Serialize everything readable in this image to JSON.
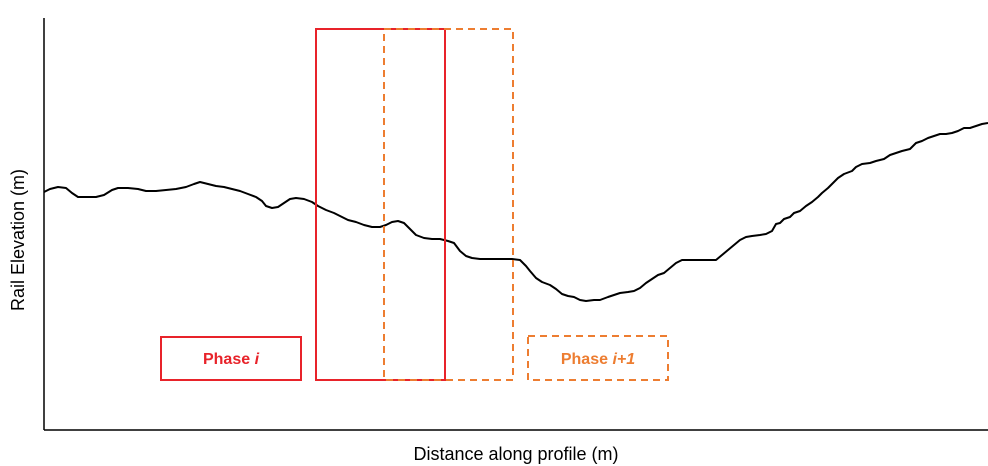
{
  "axes": {
    "xlabel": "Distance along profile (m)",
    "ylabel": "Rail Elevation (m)"
  },
  "legend": {
    "phase_i": {
      "prefix": "Phase ",
      "suffix": "i"
    },
    "phase_i1": {
      "prefix": "Phase ",
      "suffix": "i+1"
    }
  },
  "colors": {
    "axis": "#000000",
    "profile": "#000000",
    "phase_i": "#e8232a",
    "phase_i1": "#ed7d31"
  }
}
